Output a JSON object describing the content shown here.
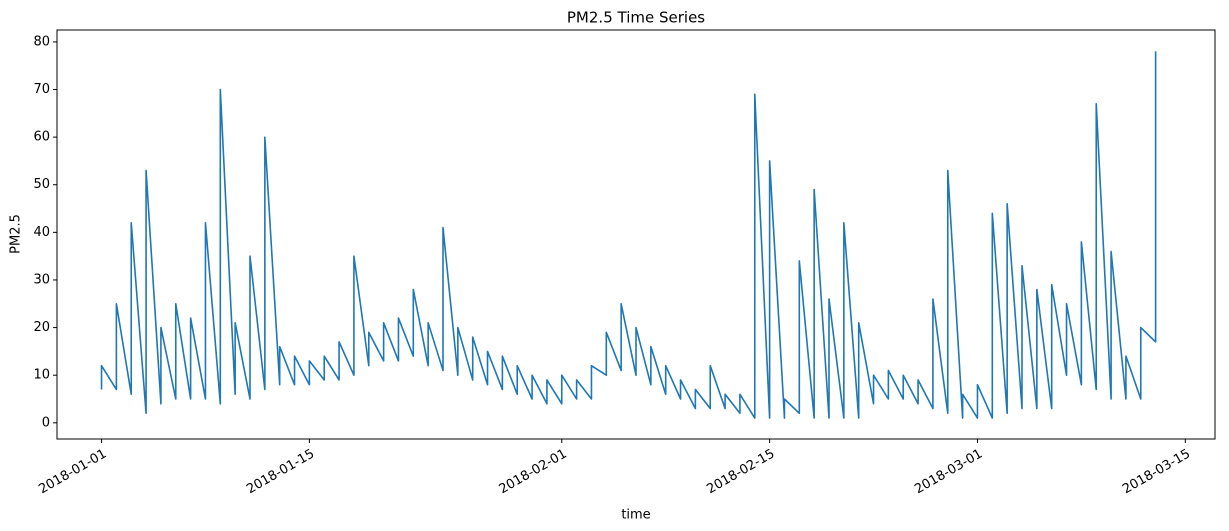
{
  "chart_data": {
    "type": "line",
    "title": "PM2.5 Time Series",
    "xlabel": "time",
    "ylabel": "PM2.5",
    "x": [
      "2018-01-01",
      "2018-01-01",
      "2018-01-02",
      "2018-01-02",
      "2018-01-03",
      "2018-01-03",
      "2018-01-04",
      "2018-01-04",
      "2018-01-05",
      "2018-01-05",
      "2018-01-06",
      "2018-01-06",
      "2018-01-07",
      "2018-01-07",
      "2018-01-08",
      "2018-01-08",
      "2018-01-09",
      "2018-01-09",
      "2018-01-10",
      "2018-01-10",
      "2018-01-11",
      "2018-01-11",
      "2018-01-12",
      "2018-01-12",
      "2018-01-13",
      "2018-01-13",
      "2018-01-14",
      "2018-01-14",
      "2018-01-15",
      "2018-01-15",
      "2018-01-16",
      "2018-01-16",
      "2018-01-17",
      "2018-01-17",
      "2018-01-18",
      "2018-01-18",
      "2018-01-19",
      "2018-01-19",
      "2018-01-20",
      "2018-01-20",
      "2018-01-21",
      "2018-01-21",
      "2018-01-22",
      "2018-01-22",
      "2018-01-23",
      "2018-01-23",
      "2018-01-24",
      "2018-01-24",
      "2018-01-25",
      "2018-01-25",
      "2018-01-26",
      "2018-01-26",
      "2018-01-27",
      "2018-01-27",
      "2018-01-28",
      "2018-01-28",
      "2018-01-29",
      "2018-01-29",
      "2018-01-30",
      "2018-01-30",
      "2018-01-31",
      "2018-01-31",
      "2018-02-01",
      "2018-02-01",
      "2018-02-02",
      "2018-02-02",
      "2018-02-03",
      "2018-02-03",
      "2018-02-04",
      "2018-02-04",
      "2018-02-05",
      "2018-02-05",
      "2018-02-06",
      "2018-02-06",
      "2018-02-07",
      "2018-02-07",
      "2018-02-08",
      "2018-02-08",
      "2018-02-09",
      "2018-02-09",
      "2018-02-10",
      "2018-02-10",
      "2018-02-11",
      "2018-02-11",
      "2018-02-12",
      "2018-02-12",
      "2018-02-13",
      "2018-02-13",
      "2018-02-14",
      "2018-02-14",
      "2018-02-15",
      "2018-02-15",
      "2018-02-16",
      "2018-02-16",
      "2018-02-17",
      "2018-02-17",
      "2018-02-18",
      "2018-02-18",
      "2018-02-19",
      "2018-02-19",
      "2018-02-20",
      "2018-02-20",
      "2018-02-21",
      "2018-02-21",
      "2018-02-22",
      "2018-02-22",
      "2018-02-23",
      "2018-02-23",
      "2018-02-24",
      "2018-02-24",
      "2018-02-25",
      "2018-02-25",
      "2018-02-26",
      "2018-02-26",
      "2018-02-27",
      "2018-02-27",
      "2018-02-28",
      "2018-02-28",
      "2018-03-01",
      "2018-03-01",
      "2018-03-02",
      "2018-03-02",
      "2018-03-03",
      "2018-03-03",
      "2018-03-04",
      "2018-03-04",
      "2018-03-05",
      "2018-03-05",
      "2018-03-06",
      "2018-03-06",
      "2018-03-07",
      "2018-03-07",
      "2018-03-08",
      "2018-03-08",
      "2018-03-09",
      "2018-03-09",
      "2018-03-10",
      "2018-03-10",
      "2018-03-11",
      "2018-03-11",
      "2018-03-12",
      "2018-03-12",
      "2018-03-13",
      "2018-03-13"
    ],
    "series": [
      {
        "name": "PM2.5",
        "color": "#1f77b4",
        "values": [
          7,
          12,
          7,
          25,
          6,
          42,
          2,
          53,
          4,
          20,
          5,
          25,
          5,
          22,
          5,
          42,
          4,
          70,
          6,
          21,
          5,
          35,
          7,
          60,
          8,
          16,
          8,
          14,
          8,
          13,
          9,
          14,
          9,
          17,
          10,
          35,
          12,
          19,
          13,
          21,
          13,
          22,
          14,
          28,
          12,
          21,
          11,
          41,
          10,
          20,
          9,
          18,
          8,
          15,
          7,
          14,
          6,
          12,
          5,
          10,
          4,
          9,
          4,
          10,
          5,
          9,
          5,
          12,
          10,
          19,
          11,
          25,
          10,
          20,
          8,
          16,
          6,
          12,
          5,
          9,
          3,
          7,
          3,
          12,
          3,
          6,
          2,
          6,
          1,
          69,
          1,
          55,
          1,
          5,
          2,
          34,
          1,
          49,
          1,
          26,
          1,
          42,
          1,
          21,
          4,
          10,
          5,
          11,
          5,
          10,
          4,
          9,
          3,
          26,
          2,
          53,
          1,
          6,
          1,
          8,
          1,
          44,
          2,
          46,
          3,
          33,
          3,
          28,
          3,
          29,
          10,
          25,
          8,
          38,
          7,
          67,
          5,
          36,
          5,
          14,
          5,
          20,
          17,
          78
        ]
      }
    ],
    "xlim": [
      "2017-12-29",
      "2018-03-17"
    ],
    "xticks": [
      "2018-01-01",
      "2018-01-15",
      "2018-02-01",
      "2018-02-15",
      "2018-03-01",
      "2018-03-15"
    ],
    "ylim": [
      -3.4,
      82.5
    ],
    "yticks": [
      0,
      10,
      20,
      30,
      40,
      50,
      60,
      70,
      80
    ]
  }
}
